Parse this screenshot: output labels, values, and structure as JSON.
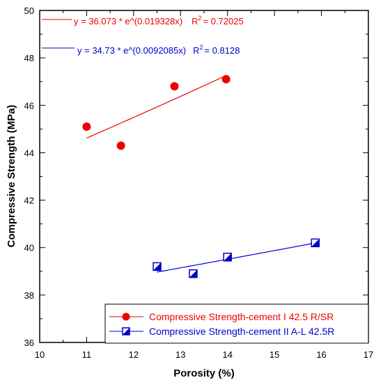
{
  "chart_data": {
    "type": "scatter",
    "xlabel": "Porosity (%)",
    "ylabel": "Compressive Strength (MPa)",
    "xlim": [
      10,
      17
    ],
    "ylim": [
      36,
      50
    ],
    "x_ticks": [
      "10",
      "11",
      "12",
      "13",
      "14",
      "15",
      "16",
      "17"
    ],
    "y_ticks": [
      "36",
      "38",
      "40",
      "42",
      "44",
      "46",
      "48",
      "50"
    ],
    "grid": false,
    "legend_position": "bottom-right",
    "series": [
      {
        "name": "Compressive Strength-cement I 42.5 R/SR",
        "color": "#ee0000",
        "marker": "filled-circle",
        "x": [
          11.0,
          11.73,
          12.87,
          13.97
        ],
        "y": [
          45.1,
          44.3,
          46.8,
          47.1
        ],
        "fit": {
          "a": 36.073,
          "b": 0.019328,
          "x_range": [
            11.0,
            13.97
          ],
          "equation_prefix": "y = 36.073 * e^(0.019328x)",
          "r2_label": "R",
          "r2_sup": "2",
          "r2_value": "= 0.72025"
        }
      },
      {
        "name": "Compressive Strength-cement II  A-L 42.5R",
        "color": "#0000cc",
        "marker": "half-filled-square",
        "x": [
          12.5,
          13.27,
          14.0,
          15.87
        ],
        "y": [
          39.2,
          38.9,
          39.6,
          40.2
        ],
        "fit": {
          "a": 34.73,
          "b": 0.0092085,
          "x_range": [
            12.5,
            15.87
          ],
          "equation_prefix": "y = 34.73 * e^(0.0092085x)",
          "r2_label": "R",
          "r2_sup": "2",
          "r2_value": "= 0.8128"
        }
      }
    ]
  }
}
